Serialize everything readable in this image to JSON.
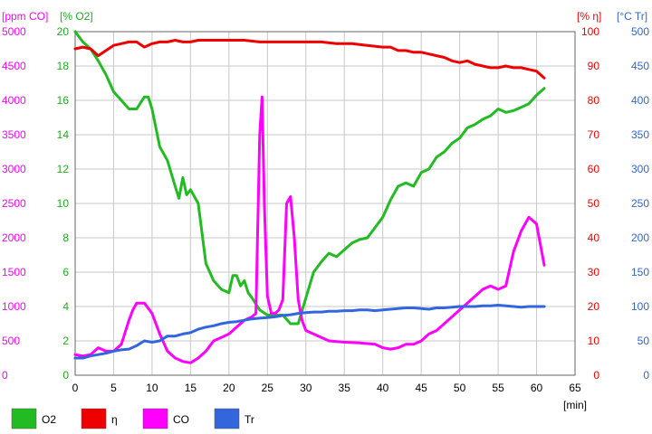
{
  "chart_data": {
    "type": "line",
    "grid": true,
    "legend_placement": "bottom",
    "x_axis": {
      "label": "[min]",
      "range": [
        0,
        65
      ],
      "ticks": [
        "0",
        "5",
        "10",
        "15",
        "20",
        "25",
        "30",
        "35",
        "40",
        "45",
        "50",
        "55",
        "60",
        "65"
      ]
    },
    "axes": {
      "co": {
        "label": "[ppm CO]",
        "color": "#ff00ff",
        "range": [
          0,
          5000
        ],
        "ticks": [
          "0",
          "500",
          "1000",
          "1500",
          "2000",
          "2500",
          "3000",
          "3500",
          "4000",
          "4500",
          "5000"
        ]
      },
      "o2": {
        "label": "[% O2]",
        "color": "#22aa22",
        "range": [
          0,
          20
        ],
        "ticks": [
          "0",
          "2",
          "4",
          "6",
          "8",
          "10",
          "12",
          "14",
          "16",
          "18",
          "20"
        ]
      },
      "eta": {
        "label": "[% η]",
        "color": "#ee0000",
        "range": [
          0,
          100
        ],
        "ticks": [
          "0",
          "10",
          "20",
          "30",
          "40",
          "50",
          "60",
          "70",
          "80",
          "90",
          "100"
        ]
      },
      "tr": {
        "label": "[°C Tr]",
        "color": "#3366cc",
        "range": [
          0,
          500
        ],
        "ticks": [
          "0",
          "50",
          "100",
          "150",
          "200",
          "250",
          "300",
          "350",
          "400",
          "450",
          "500"
        ]
      }
    },
    "series": [
      {
        "name": "O2",
        "key": "o2",
        "axis": "o2",
        "color": "#22bb22",
        "x": [
          0,
          1,
          2,
          3,
          4,
          5,
          6,
          7,
          8,
          9,
          9.5,
          10,
          11,
          12,
          13,
          13.5,
          14,
          14.5,
          15,
          16,
          17,
          18,
          19,
          20,
          20.5,
          21,
          21.5,
          22,
          22.5,
          23,
          24,
          25,
          26,
          27,
          28,
          29,
          30,
          31,
          32,
          33,
          34,
          35,
          36,
          37,
          38,
          39,
          40,
          41,
          42,
          43,
          44,
          45,
          46,
          47,
          48,
          49,
          50,
          51,
          52,
          53,
          54,
          55,
          56,
          57,
          58,
          59,
          60,
          61
        ],
        "y": [
          20,
          19.4,
          19,
          18.3,
          17.5,
          16.5,
          16,
          15.5,
          15.5,
          16.2,
          16.2,
          15.5,
          13.3,
          12.5,
          11,
          10.3,
          11.5,
          10.5,
          10.8,
          10,
          6.5,
          5.5,
          5,
          4.8,
          5.8,
          5.8,
          5.2,
          5.5,
          4.8,
          4.5,
          3.8,
          3.5,
          3.5,
          3.5,
          3,
          3,
          4.5,
          6,
          6.6,
          7.1,
          6.9,
          7.3,
          7.7,
          7.9,
          8,
          8.6,
          9.2,
          10.2,
          11,
          11.2,
          11,
          11.8,
          12,
          12.7,
          13,
          13.5,
          13.8,
          14.4,
          14.6,
          14.9,
          15.1,
          15.5,
          15.3,
          15.4,
          15.6,
          15.8,
          16.3,
          16.7
        ]
      },
      {
        "name": "η",
        "key": "eta",
        "axis": "eta",
        "color": "#ee0000",
        "x": [
          0,
          1,
          2,
          3,
          4,
          5,
          6,
          7,
          8,
          9,
          10,
          11,
          12,
          13,
          14,
          15,
          16,
          17,
          18,
          20,
          22,
          24,
          25,
          26,
          28,
          30,
          32,
          34,
          36,
          38,
          40,
          41,
          42,
          43,
          44,
          45,
          46,
          47,
          48,
          49,
          50,
          51,
          52,
          53,
          54,
          55,
          56,
          57,
          58,
          59,
          60,
          61
        ],
        "y": [
          95,
          95.5,
          95,
          93,
          94.5,
          96,
          96.5,
          97,
          97,
          95.5,
          96.5,
          97,
          97,
          97.5,
          97,
          97,
          97.5,
          97.5,
          97.5,
          97.5,
          97.5,
          97,
          97,
          97,
          97,
          97,
          97,
          96.5,
          96.5,
          96,
          95.5,
          95.5,
          94.5,
          94.5,
          94,
          94,
          93.5,
          93,
          92.5,
          91.5,
          91,
          91.5,
          90.5,
          90,
          89.5,
          89.5,
          90,
          89.5,
          89.5,
          89,
          88.5,
          86.5
        ]
      },
      {
        "name": "CO",
        "key": "co",
        "axis": "co",
        "color": "#ff00ff",
        "x": [
          0,
          1,
          2,
          3,
          4,
          5,
          6,
          7,
          7.5,
          8,
          9,
          10,
          11,
          12,
          13,
          14,
          15,
          16,
          17,
          18,
          19,
          20,
          21,
          22,
          23,
          23.5,
          24,
          24.3,
          24.6,
          25,
          25.5,
          26,
          26.5,
          27,
          27.5,
          28,
          28.5,
          29,
          29.5,
          30,
          31,
          32,
          33,
          35,
          37,
          39,
          40,
          41,
          42,
          43,
          44,
          45,
          46,
          47,
          48,
          49,
          50,
          51,
          52,
          53,
          54,
          55,
          56,
          57,
          58,
          59,
          60,
          61
        ],
        "y": [
          300,
          280,
          300,
          400,
          350,
          350,
          450,
          800,
          950,
          1050,
          1050,
          900,
          600,
          350,
          250,
          200,
          180,
          250,
          350,
          500,
          550,
          600,
          700,
          800,
          850,
          900,
          3500,
          4050,
          2500,
          1150,
          900,
          900,
          950,
          1100,
          2500,
          2600,
          2000,
          1100,
          800,
          650,
          600,
          550,
          500,
          480,
          470,
          450,
          400,
          380,
          400,
          450,
          450,
          500,
          600,
          650,
          750,
          850,
          950,
          1050,
          1150,
          1250,
          1300,
          1250,
          1300,
          1800,
          2100,
          2300,
          2200,
          1600
        ]
      },
      {
        "name": "Tr",
        "key": "tr",
        "axis": "tr",
        "color": "#3366dd",
        "x": [
          0,
          1,
          2,
          3,
          4,
          5,
          6,
          7,
          8,
          9,
          10,
          11,
          12,
          13,
          14,
          15,
          16,
          17,
          18,
          19,
          20,
          21,
          22,
          23,
          24,
          25,
          26,
          27,
          28,
          29,
          30,
          31,
          32,
          33,
          34,
          35,
          36,
          37,
          38,
          39,
          40,
          41,
          42,
          43,
          44,
          45,
          46,
          47,
          48,
          49,
          50,
          51,
          52,
          53,
          54,
          55,
          56,
          57,
          58,
          59,
          60,
          61
        ],
        "y": [
          25,
          25,
          28,
          30,
          32,
          35,
          37,
          38,
          43,
          50,
          48,
          50,
          57,
          57,
          60,
          62,
          67,
          70,
          72,
          75,
          77,
          78,
          80,
          82,
          83,
          84,
          85,
          87,
          88,
          90,
          91,
          92,
          92,
          93,
          93,
          94,
          94,
          95,
          95,
          94,
          95,
          96,
          97,
          98,
          98,
          97,
          96,
          98,
          98,
          99,
          100,
          100,
          100,
          101,
          101,
          102,
          101,
          100,
          99,
          100,
          100,
          100
        ]
      }
    ],
    "legend": [
      {
        "name": "O2",
        "color": "#22bb22"
      },
      {
        "name": "η",
        "color": "#ee0000"
      },
      {
        "name": "CO",
        "color": "#ff00ff"
      },
      {
        "name": "Tr",
        "color": "#3366dd"
      }
    ]
  }
}
